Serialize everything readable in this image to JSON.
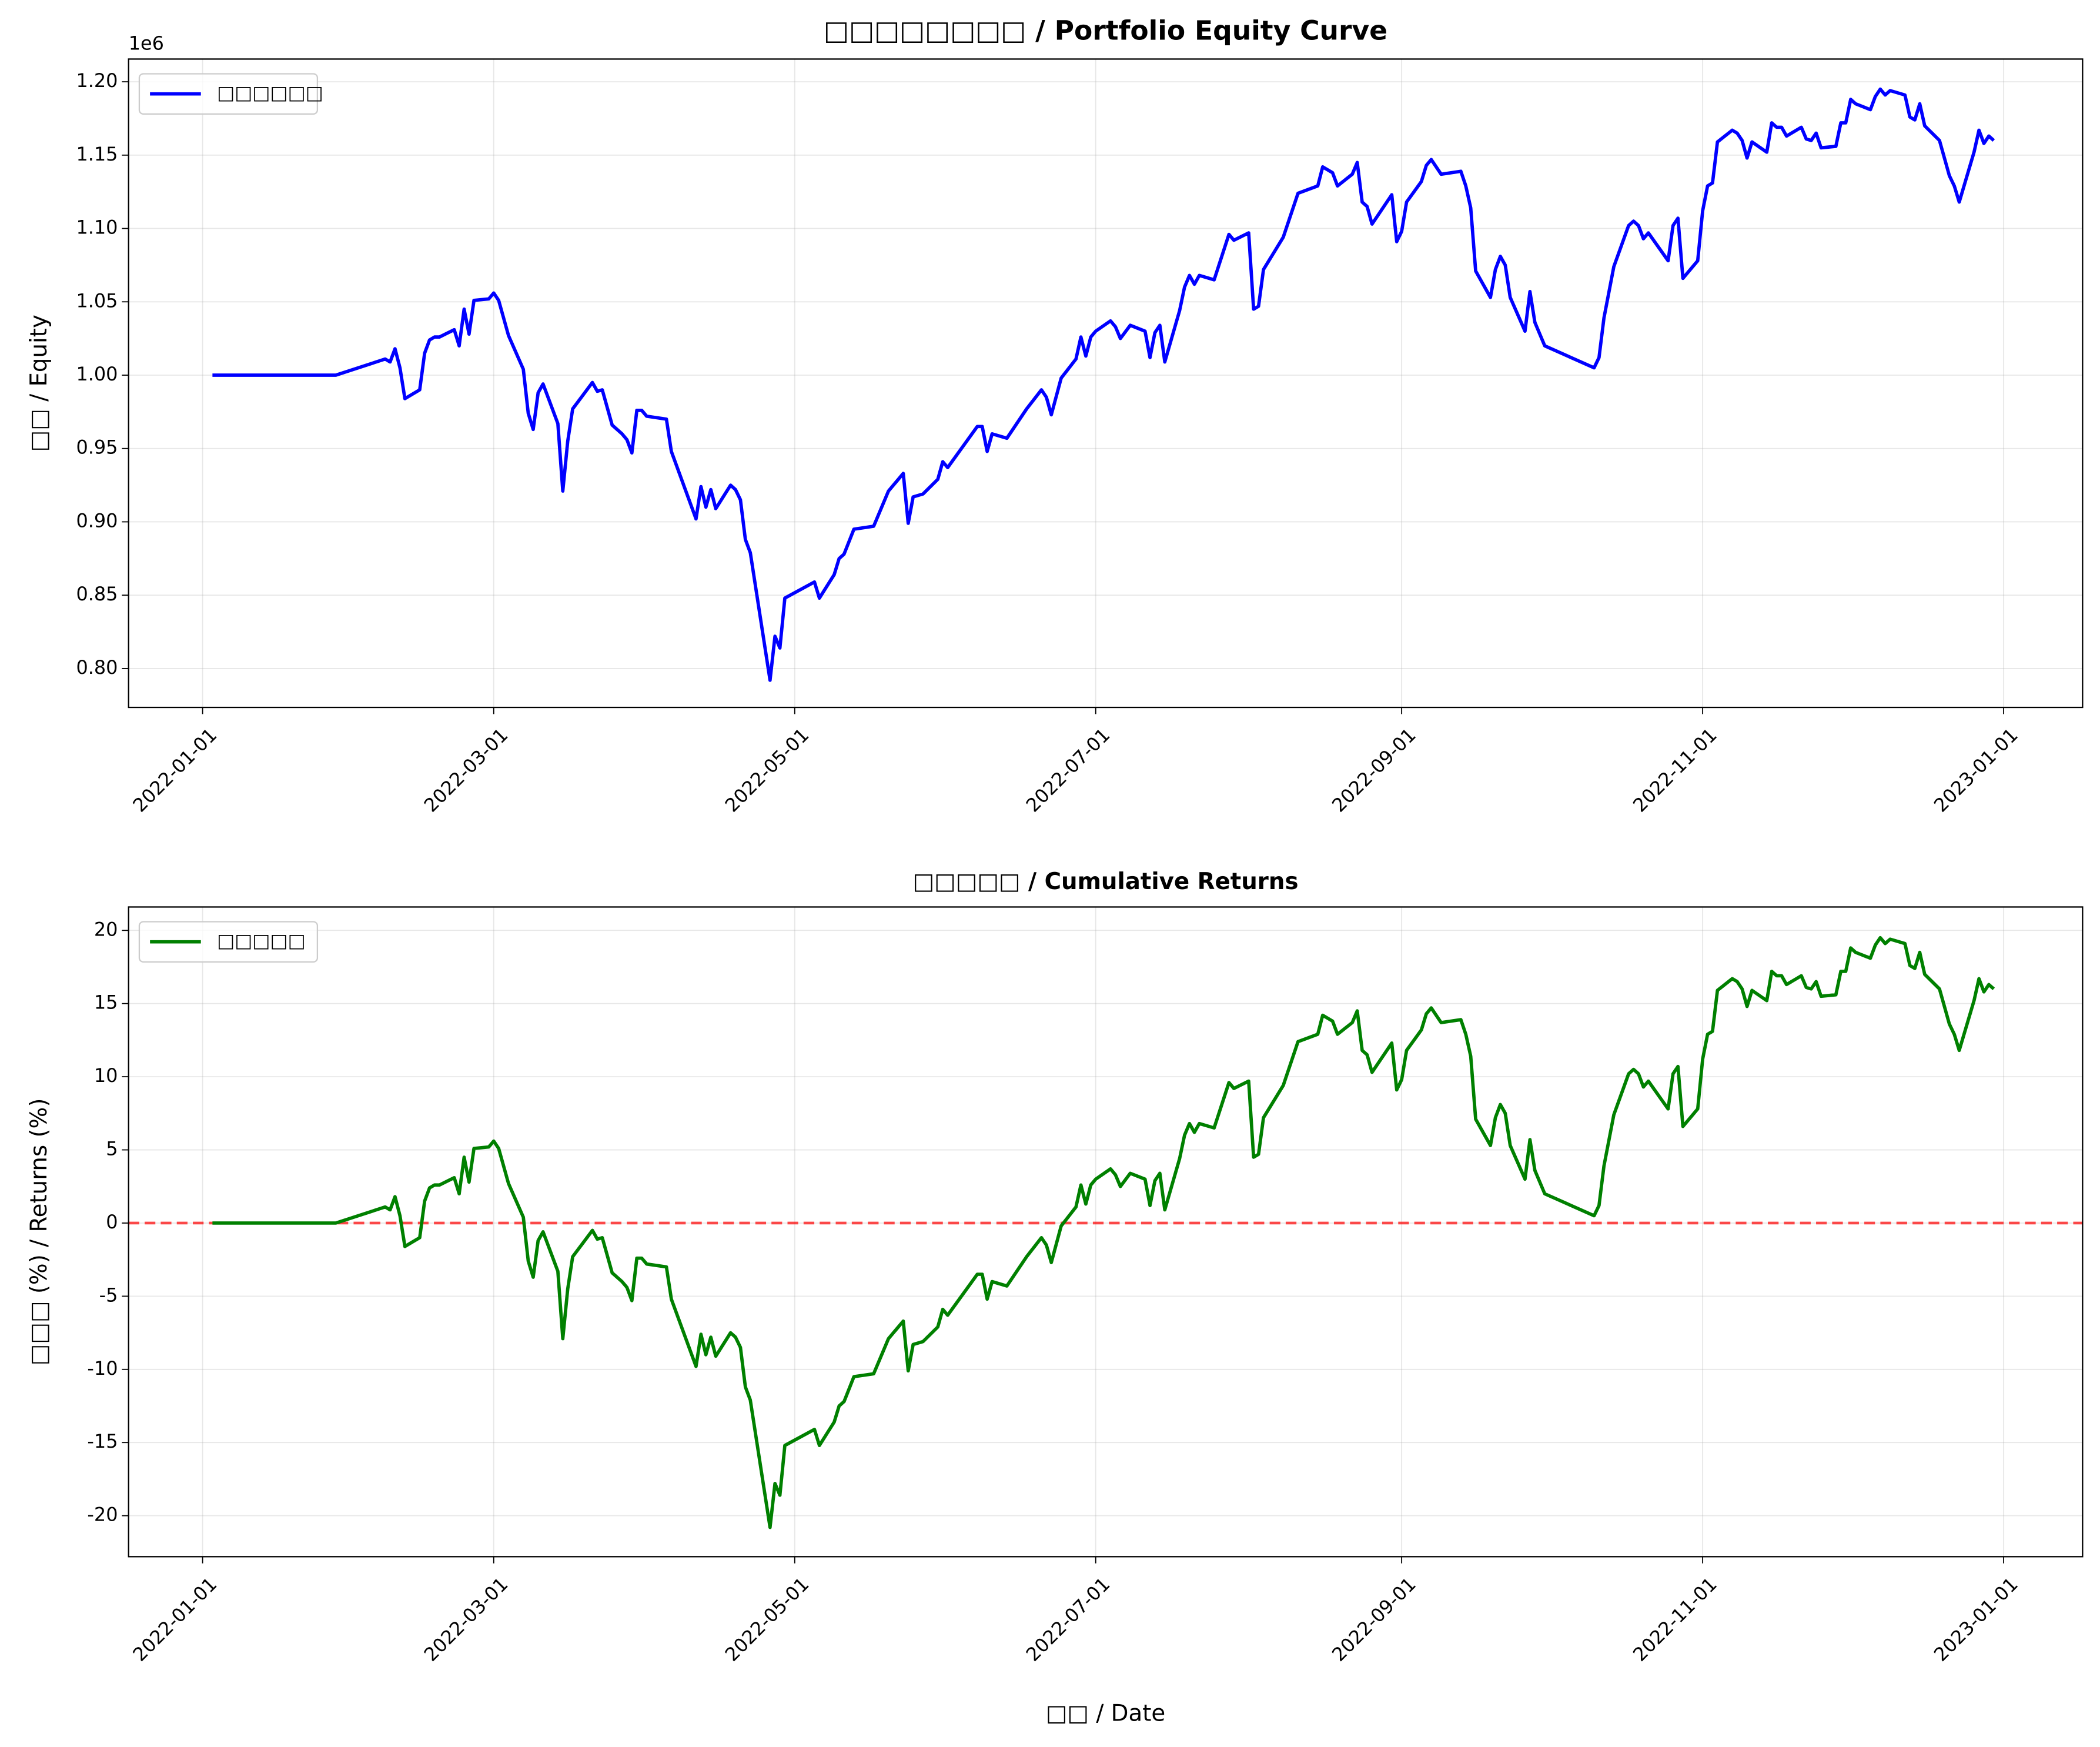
{
  "chart_data": [
    {
      "type": "line",
      "title": "□□□□□□□□ / Portfolio Equity Curve",
      "y_label": "□□ / Equity",
      "offset_text": "1e6",
      "legend": "upper left",
      "grid": true,
      "xlim": [
        "2021-12-17",
        "2023-01-17"
      ],
      "xticks": [
        "2022-01-01",
        "2022-03-01",
        "2022-05-01",
        "2022-07-01",
        "2022-09-01",
        "2022-11-01",
        "2023-01-01"
      ],
      "ylim": [
        773500,
        1215500
      ],
      "yticks": [
        {
          "value": 800000,
          "label": "0.80"
        },
        {
          "value": 850000,
          "label": "0.85"
        },
        {
          "value": 900000,
          "label": "0.90"
        },
        {
          "value": 950000,
          "label": "0.95"
        },
        {
          "value": 1000000,
          "label": "1.00"
        },
        {
          "value": 1050000,
          "label": "1.05"
        },
        {
          "value": 1100000,
          "label": "1.10"
        },
        {
          "value": 1150000,
          "label": "1.15"
        },
        {
          "value": 1200000,
          "label": "1.20"
        }
      ],
      "x": [
        "2022-01-03",
        "2022-01-28",
        "2022-02-07",
        "2022-02-08",
        "2022-02-09",
        "2022-02-10",
        "2022-02-11",
        "2022-02-14",
        "2022-02-15",
        "2022-02-16",
        "2022-02-17",
        "2022-02-18",
        "2022-02-21",
        "2022-02-22",
        "2022-02-23",
        "2022-02-24",
        "2022-02-25",
        "2022-02-28",
        "2022-03-01",
        "2022-03-02",
        "2022-03-04",
        "2022-03-07",
        "2022-03-08",
        "2022-03-09",
        "2022-03-10",
        "2022-03-11",
        "2022-03-14",
        "2022-03-15",
        "2022-03-16",
        "2022-03-17",
        "2022-03-19",
        "2022-03-21",
        "2022-03-22",
        "2022-03-23",
        "2022-03-25",
        "2022-03-27",
        "2022-03-28",
        "2022-03-29",
        "2022-03-30",
        "2022-03-31",
        "2022-04-01",
        "2022-04-05",
        "2022-04-06",
        "2022-04-11",
        "2022-04-12",
        "2022-04-13",
        "2022-04-14",
        "2022-04-15",
        "2022-04-18",
        "2022-04-19",
        "2022-04-20",
        "2022-04-21",
        "2022-04-22",
        "2022-04-26",
        "2022-04-27",
        "2022-04-28",
        "2022-04-29",
        "2022-05-05",
        "2022-05-06",
        "2022-05-09",
        "2022-05-10",
        "2022-05-11",
        "2022-05-13",
        "2022-05-17",
        "2022-05-20",
        "2022-05-23",
        "2022-05-24",
        "2022-05-25",
        "2022-05-27",
        "2022-05-30",
        "2022-05-31",
        "2022-06-01",
        "2022-06-07",
        "2022-06-08",
        "2022-06-09",
        "2022-06-10",
        "2022-06-13",
        "2022-06-17",
        "2022-06-20",
        "2022-06-21",
        "2022-06-22",
        "2022-06-24",
        "2022-06-27",
        "2022-06-28",
        "2022-06-29",
        "2022-06-30",
        "2022-07-01",
        "2022-07-04",
        "2022-07-05",
        "2022-07-06",
        "2022-07-08",
        "2022-07-11",
        "2022-07-12",
        "2022-07-13",
        "2022-07-14",
        "2022-07-15",
        "2022-07-18",
        "2022-07-19",
        "2022-07-20",
        "2022-07-21",
        "2022-07-22",
        "2022-07-25",
        "2022-07-28",
        "2022-07-29",
        "2022-08-01",
        "2022-08-02",
        "2022-08-03",
        "2022-08-04",
        "2022-08-08",
        "2022-08-11",
        "2022-08-15",
        "2022-08-16",
        "2022-08-18",
        "2022-08-19",
        "2022-08-22",
        "2022-08-23",
        "2022-08-24",
        "2022-08-25",
        "2022-08-26",
        "2022-08-30",
        "2022-08-31",
        "2022-09-01",
        "2022-09-02",
        "2022-09-05",
        "2022-09-06",
        "2022-09-07",
        "2022-09-09",
        "2022-09-13",
        "2022-09-14",
        "2022-09-15",
        "2022-09-16",
        "2022-09-19",
        "2022-09-20",
        "2022-09-21",
        "2022-09-22",
        "2022-09-23",
        "2022-09-26",
        "2022-09-27",
        "2022-09-28",
        "2022-09-30",
        "2022-10-10",
        "2022-10-11",
        "2022-10-12",
        "2022-10-14",
        "2022-10-17",
        "2022-10-18",
        "2022-10-19",
        "2022-10-20",
        "2022-10-21",
        "2022-10-25",
        "2022-10-26",
        "2022-10-27",
        "2022-10-28",
        "2022-10-31",
        "2022-11-01",
        "2022-11-02",
        "2022-11-03",
        "2022-11-04",
        "2022-11-07",
        "2022-11-08",
        "2022-11-09",
        "2022-11-10",
        "2022-11-11",
        "2022-11-14",
        "2022-11-15",
        "2022-11-16",
        "2022-11-17",
        "2022-11-18",
        "2022-11-21",
        "2022-11-22",
        "2022-11-23",
        "2022-11-24",
        "2022-11-25",
        "2022-11-28",
        "2022-11-29",
        "2022-11-30",
        "2022-12-01",
        "2022-12-02",
        "2022-12-05",
        "2022-12-06",
        "2022-12-07",
        "2022-12-08",
        "2022-12-09",
        "2022-12-12",
        "2022-12-13",
        "2022-12-14",
        "2022-12-15",
        "2022-12-16",
        "2022-12-19",
        "2022-12-20",
        "2022-12-21",
        "2022-12-22",
        "2022-12-23",
        "2022-12-26",
        "2022-12-27",
        "2022-12-28",
        "2022-12-29",
        "2022-12-30"
      ],
      "series": [
        {
          "name": "□□□□□□",
          "color": "#0000ff",
          "values": [
            1000000,
            1000000,
            1011000,
            1009000,
            1018000,
            1005000,
            984000,
            990000,
            1015000,
            1024000,
            1026000,
            1026000,
            1031000,
            1020000,
            1045000,
            1028000,
            1051000,
            1052000,
            1056000,
            1051000,
            1027000,
            1004000,
            974000,
            963000,
            988000,
            994000,
            967000,
            921000,
            955000,
            977000,
            986000,
            995000,
            989000,
            990000,
            966000,
            960000,
            956000,
            947000,
            976000,
            976000,
            972000,
            970000,
            948000,
            902000,
            924000,
            910000,
            922000,
            909000,
            925000,
            922000,
            915000,
            888000,
            879000,
            792000,
            822000,
            814000,
            848000,
            859000,
            848000,
            864000,
            875000,
            878000,
            895000,
            897000,
            921000,
            933000,
            899000,
            917000,
            919000,
            929000,
            941000,
            937000,
            965000,
            965000,
            948000,
            960000,
            957000,
            977000,
            990000,
            985000,
            973000,
            998000,
            1011000,
            1026000,
            1013000,
            1026000,
            1030000,
            1037000,
            1033000,
            1025000,
            1034000,
            1030000,
            1012000,
            1029000,
            1034000,
            1009000,
            1044000,
            1060000,
            1068000,
            1062000,
            1068000,
            1065000,
            1096000,
            1092000,
            1097000,
            1045000,
            1047000,
            1072000,
            1094000,
            1124000,
            1129000,
            1142000,
            1138000,
            1129000,
            1137000,
            1145000,
            1118000,
            1115000,
            1103000,
            1123000,
            1091000,
            1098000,
            1118000,
            1132000,
            1143000,
            1147000,
            1137000,
            1139000,
            1129000,
            1114000,
            1071000,
            1053000,
            1072000,
            1081000,
            1075000,
            1053000,
            1030000,
            1057000,
            1036000,
            1020000,
            1005000,
            1012000,
            1039000,
            1074000,
            1102000,
            1105000,
            1102000,
            1093000,
            1097000,
            1078000,
            1102000,
            1107000,
            1066000,
            1078000,
            1112000,
            1129000,
            1131000,
            1159000,
            1167000,
            1165000,
            1160000,
            1148000,
            1159000,
            1152000,
            1172000,
            1169000,
            1169000,
            1163000,
            1169000,
            1161000,
            1160000,
            1165000,
            1155000,
            1156000,
            1172000,
            1172000,
            1188000,
            1185000,
            1181000,
            1190000,
            1195000,
            1191000,
            1194000,
            1191000,
            1176000,
            1174000,
            1185000,
            1170000,
            1160000,
            1148000,
            1136000,
            1129000,
            1118000,
            1152000,
            1167000,
            1158000,
            1163000,
            1160000
          ]
        }
      ]
    },
    {
      "type": "line",
      "title": "□□□□□ / Cumulative Returns",
      "y_label": "□□□ (%) / Returns (%)",
      "x_label": "□□ / Date",
      "legend": "upper left",
      "grid": true,
      "hline": {
        "value": 0,
        "color": "#ff0000"
      },
      "xlim": [
        "2021-12-17",
        "2023-01-17"
      ],
      "xticks": [
        "2022-01-01",
        "2022-03-01",
        "2022-05-01",
        "2022-07-01",
        "2022-09-01",
        "2022-11-01",
        "2023-01-01"
      ],
      "ylim": [
        -22.8,
        21.6
      ],
      "yticks": [
        -20,
        -15,
        -10,
        -5,
        0,
        5,
        10,
        15,
        20
      ],
      "x": [
        "2022-01-03",
        "2022-01-28",
        "2022-02-07",
        "2022-02-08",
        "2022-02-09",
        "2022-02-10",
        "2022-02-11",
        "2022-02-14",
        "2022-02-15",
        "2022-02-16",
        "2022-02-17",
        "2022-02-18",
        "2022-02-21",
        "2022-02-22",
        "2022-02-23",
        "2022-02-24",
        "2022-02-25",
        "2022-02-28",
        "2022-03-01",
        "2022-03-02",
        "2022-03-04",
        "2022-03-07",
        "2022-03-08",
        "2022-03-09",
        "2022-03-10",
        "2022-03-11",
        "2022-03-14",
        "2022-03-15",
        "2022-03-16",
        "2022-03-17",
        "2022-03-19",
        "2022-03-21",
        "2022-03-22",
        "2022-03-23",
        "2022-03-25",
        "2022-03-27",
        "2022-03-28",
        "2022-03-29",
        "2022-03-30",
        "2022-03-31",
        "2022-04-01",
        "2022-04-05",
        "2022-04-06",
        "2022-04-11",
        "2022-04-12",
        "2022-04-13",
        "2022-04-14",
        "2022-04-15",
        "2022-04-18",
        "2022-04-19",
        "2022-04-20",
        "2022-04-21",
        "2022-04-22",
        "2022-04-26",
        "2022-04-27",
        "2022-04-28",
        "2022-04-29",
        "2022-05-05",
        "2022-05-06",
        "2022-05-09",
        "2022-05-10",
        "2022-05-11",
        "2022-05-13",
        "2022-05-17",
        "2022-05-20",
        "2022-05-23",
        "2022-05-24",
        "2022-05-25",
        "2022-05-27",
        "2022-05-30",
        "2022-05-31",
        "2022-06-01",
        "2022-06-07",
        "2022-06-08",
        "2022-06-09",
        "2022-06-10",
        "2022-06-13",
        "2022-06-17",
        "2022-06-20",
        "2022-06-21",
        "2022-06-22",
        "2022-06-24",
        "2022-06-27",
        "2022-06-28",
        "2022-06-29",
        "2022-06-30",
        "2022-07-01",
        "2022-07-04",
        "2022-07-05",
        "2022-07-06",
        "2022-07-08",
        "2022-07-11",
        "2022-07-12",
        "2022-07-13",
        "2022-07-14",
        "2022-07-15",
        "2022-07-18",
        "2022-07-19",
        "2022-07-20",
        "2022-07-21",
        "2022-07-22",
        "2022-07-25",
        "2022-07-28",
        "2022-07-29",
        "2022-08-01",
        "2022-08-02",
        "2022-08-03",
        "2022-08-04",
        "2022-08-08",
        "2022-08-11",
        "2022-08-15",
        "2022-08-16",
        "2022-08-18",
        "2022-08-19",
        "2022-08-22",
        "2022-08-23",
        "2022-08-24",
        "2022-08-25",
        "2022-08-26",
        "2022-08-30",
        "2022-08-31",
        "2022-09-01",
        "2022-09-02",
        "2022-09-05",
        "2022-09-06",
        "2022-09-07",
        "2022-09-09",
        "2022-09-13",
        "2022-09-14",
        "2022-09-15",
        "2022-09-16",
        "2022-09-19",
        "2022-09-20",
        "2022-09-21",
        "2022-09-22",
        "2022-09-23",
        "2022-09-26",
        "2022-09-27",
        "2022-09-28",
        "2022-09-30",
        "2022-10-10",
        "2022-10-11",
        "2022-10-12",
        "2022-10-14",
        "2022-10-17",
        "2022-10-18",
        "2022-10-19",
        "2022-10-20",
        "2022-10-21",
        "2022-10-25",
        "2022-10-26",
        "2022-10-27",
        "2022-10-28",
        "2022-10-31",
        "2022-11-01",
        "2022-11-02",
        "2022-11-03",
        "2022-11-04",
        "2022-11-07",
        "2022-11-08",
        "2022-11-09",
        "2022-11-10",
        "2022-11-11",
        "2022-11-14",
        "2022-11-15",
        "2022-11-16",
        "2022-11-17",
        "2022-11-18",
        "2022-11-21",
        "2022-11-22",
        "2022-11-23",
        "2022-11-24",
        "2022-11-25",
        "2022-11-28",
        "2022-11-29",
        "2022-11-30",
        "2022-12-01",
        "2022-12-02",
        "2022-12-05",
        "2022-12-06",
        "2022-12-07",
        "2022-12-08",
        "2022-12-09",
        "2022-12-12",
        "2022-12-13",
        "2022-12-14",
        "2022-12-15",
        "2022-12-16",
        "2022-12-19",
        "2022-12-20",
        "2022-12-21",
        "2022-12-22",
        "2022-12-23",
        "2022-12-26",
        "2022-12-27",
        "2022-12-28",
        "2022-12-29",
        "2022-12-30"
      ],
      "series": [
        {
          "name": "□□□□□",
          "color": "#008000",
          "values": [
            0,
            0,
            1.1,
            0.9,
            1.8,
            0.5,
            -1.6,
            -1.0,
            1.5,
            2.4,
            2.6,
            2.6,
            3.1,
            2.0,
            4.5,
            2.8,
            5.1,
            5.2,
            5.6,
            5.1,
            2.7,
            0.4,
            -2.6,
            -3.7,
            -1.2,
            -0.6,
            -3.3,
            -7.9,
            -4.5,
            -2.3,
            -1.4,
            -0.5,
            -1.1,
            -1.0,
            -3.4,
            -4.0,
            -4.4,
            -5.3,
            -2.4,
            -2.4,
            -2.8,
            -3.0,
            -5.2,
            -9.8,
            -7.6,
            -9.0,
            -7.8,
            -9.1,
            -7.5,
            -7.8,
            -8.5,
            -11.2,
            -12.1,
            -20.8,
            -17.8,
            -18.6,
            -15.2,
            -14.1,
            -15.2,
            -13.6,
            -12.5,
            -12.2,
            -10.5,
            -10.3,
            -7.9,
            -6.7,
            -10.1,
            -8.3,
            -8.1,
            -7.1,
            -5.9,
            -6.3,
            -3.5,
            -3.5,
            -5.2,
            -4.0,
            -4.3,
            -2.3,
            -1.0,
            -1.5,
            -2.7,
            -0.2,
            1.1,
            2.6,
            1.3,
            2.6,
            3.0,
            3.7,
            3.3,
            2.5,
            3.4,
            3.0,
            1.2,
            2.9,
            3.4,
            0.9,
            4.4,
            6.0,
            6.8,
            6.2,
            6.8,
            6.5,
            9.6,
            9.2,
            9.7,
            4.5,
            4.7,
            7.2,
            9.4,
            12.4,
            12.9,
            14.2,
            13.8,
            12.9,
            13.7,
            14.5,
            11.8,
            11.5,
            10.3,
            12.3,
            9.1,
            9.8,
            11.8,
            13.2,
            14.3,
            14.7,
            13.7,
            13.9,
            12.9,
            11.4,
            7.1,
            5.3,
            7.2,
            8.1,
            7.5,
            5.3,
            3.0,
            5.7,
            3.6,
            2.0,
            0.5,
            1.2,
            3.9,
            7.4,
            10.2,
            10.5,
            10.2,
            9.3,
            9.7,
            7.8,
            10.2,
            10.7,
            6.6,
            7.8,
            11.2,
            12.9,
            13.1,
            15.9,
            16.7,
            16.5,
            16.0,
            14.8,
            15.9,
            15.2,
            17.2,
            16.9,
            16.9,
            16.3,
            16.9,
            16.1,
            16.0,
            16.5,
            15.5,
            15.6,
            17.2,
            17.2,
            18.8,
            18.5,
            18.1,
            19.0,
            19.5,
            19.1,
            19.4,
            19.1,
            17.6,
            17.4,
            18.5,
            17.0,
            16.0,
            14.8,
            13.6,
            12.9,
            11.8,
            15.2,
            16.7,
            15.8,
            16.3,
            16.0
          ]
        }
      ]
    }
  ]
}
